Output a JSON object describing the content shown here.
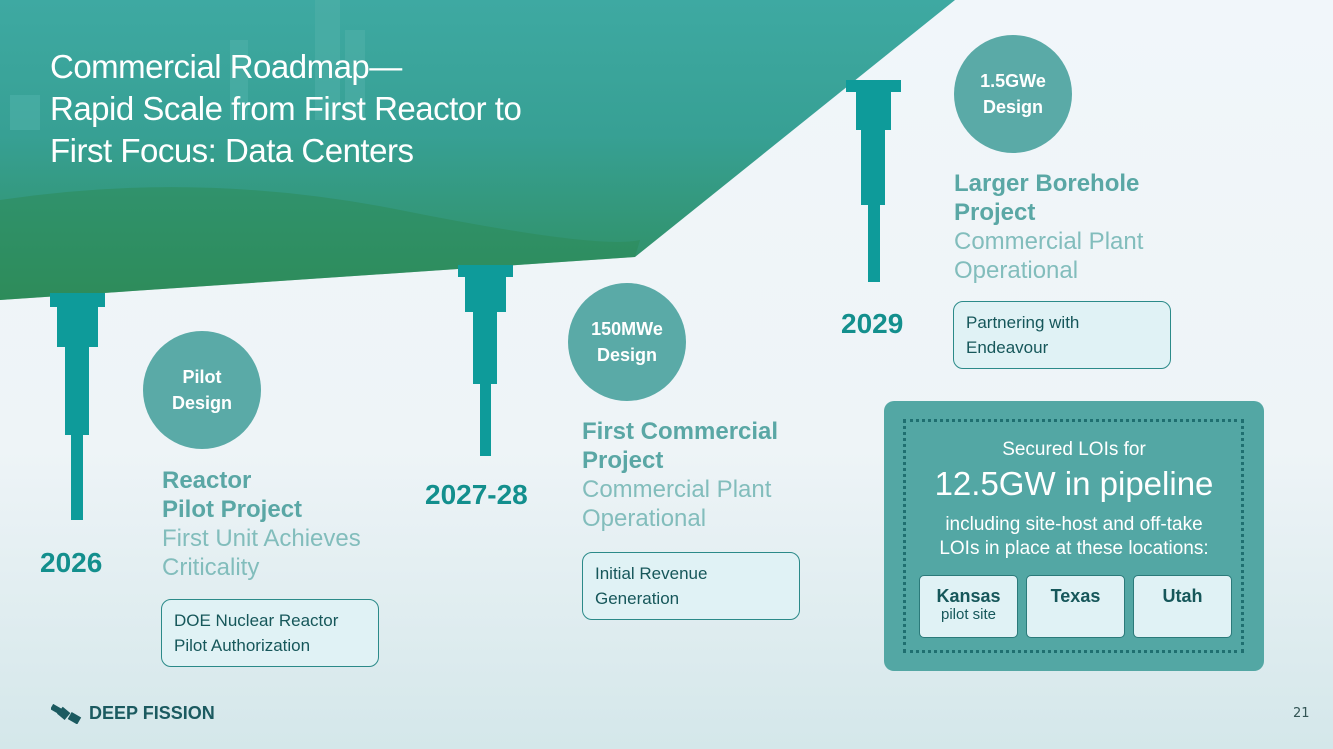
{
  "title_lines": [
    "Commercial Roadmap—",
    "Rapid Scale from First Reactor to",
    "First Focus: Data Centers"
  ],
  "milestones": [
    {
      "year": "2026",
      "circle": [
        "Pilot",
        "Design"
      ],
      "heading": [
        "Reactor",
        "Pilot Project"
      ],
      "sub": [
        "First Unit Achieves",
        "Criticality"
      ],
      "note": [
        "DOE Nuclear Reactor",
        "Pilot Authorization"
      ]
    },
    {
      "year": "2027-28",
      "circle": [
        "150MWe",
        "Design"
      ],
      "heading": [
        "First Commercial",
        "Project"
      ],
      "sub": [
        "Commercial Plant",
        "Operational"
      ],
      "note": [
        "Initial Revenue",
        "Generation"
      ]
    },
    {
      "year": "2029",
      "circle": [
        "1.5GWe",
        "Design"
      ],
      "heading": [
        "Larger Borehole",
        "Project"
      ],
      "sub": [
        "Commercial Plant",
        "Operational"
      ],
      "note": [
        "Partnering with",
        "Endeavour"
      ]
    }
  ],
  "lois": {
    "line1": "Secured LOIs for",
    "line2": "12.5GW in pipeline",
    "line3": "including site-host and off-take",
    "line4": "LOIs in place at these locations:",
    "locations": [
      {
        "name": "Kansas",
        "sub": "pilot site"
      },
      {
        "name": "Texas"
      },
      {
        "name": "Utah"
      }
    ]
  },
  "footer": {
    "logo": "DEEP FISSION",
    "page": "21"
  },
  "colors": {
    "teal": "#0e9b9a",
    "circle": "#5aaaa7",
    "panel": "#53a7a4"
  }
}
